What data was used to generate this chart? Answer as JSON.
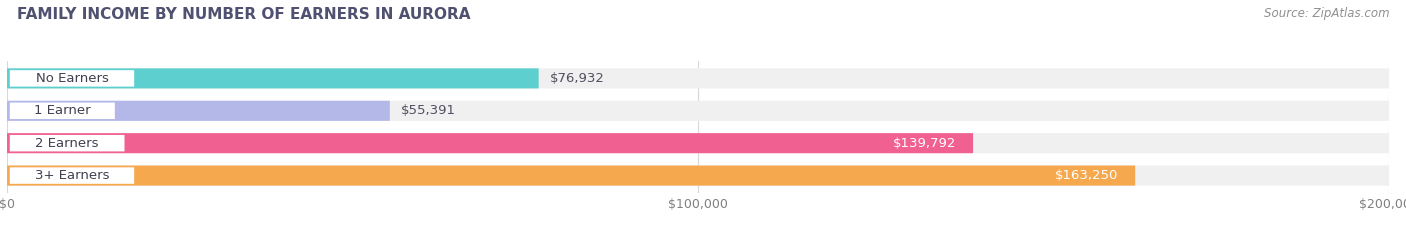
{
  "title": "FAMILY INCOME BY NUMBER OF EARNERS IN AURORA",
  "source": "Source: ZipAtlas.com",
  "categories": [
    "No Earners",
    "1 Earner",
    "2 Earners",
    "3+ Earners"
  ],
  "values": [
    76932,
    55391,
    139792,
    163250
  ],
  "bar_colors": [
    "#5ecfcf",
    "#b3b8e8",
    "#f06090",
    "#f5a84e"
  ],
  "bar_bg_colors": [
    "#f0f0f0",
    "#f0f0f0",
    "#f0f0f0",
    "#f0f0f0"
  ],
  "value_labels": [
    "$76,932",
    "$55,391",
    "$139,792",
    "$163,250"
  ],
  "value_inside": [
    false,
    false,
    true,
    true
  ],
  "xlim": [
    0,
    200000
  ],
  "xtick_labels": [
    "$0",
    "$100,000",
    "$200,000"
  ],
  "xtick_vals": [
    0,
    100000,
    200000
  ],
  "bg_color": "#ffffff",
  "plot_bg_color": "#ffffff",
  "title_color": "#505070",
  "title_fontsize": 11,
  "label_fontsize": 9.5,
  "value_fontsize": 9.5,
  "source_fontsize": 8.5,
  "source_color": "#909090"
}
